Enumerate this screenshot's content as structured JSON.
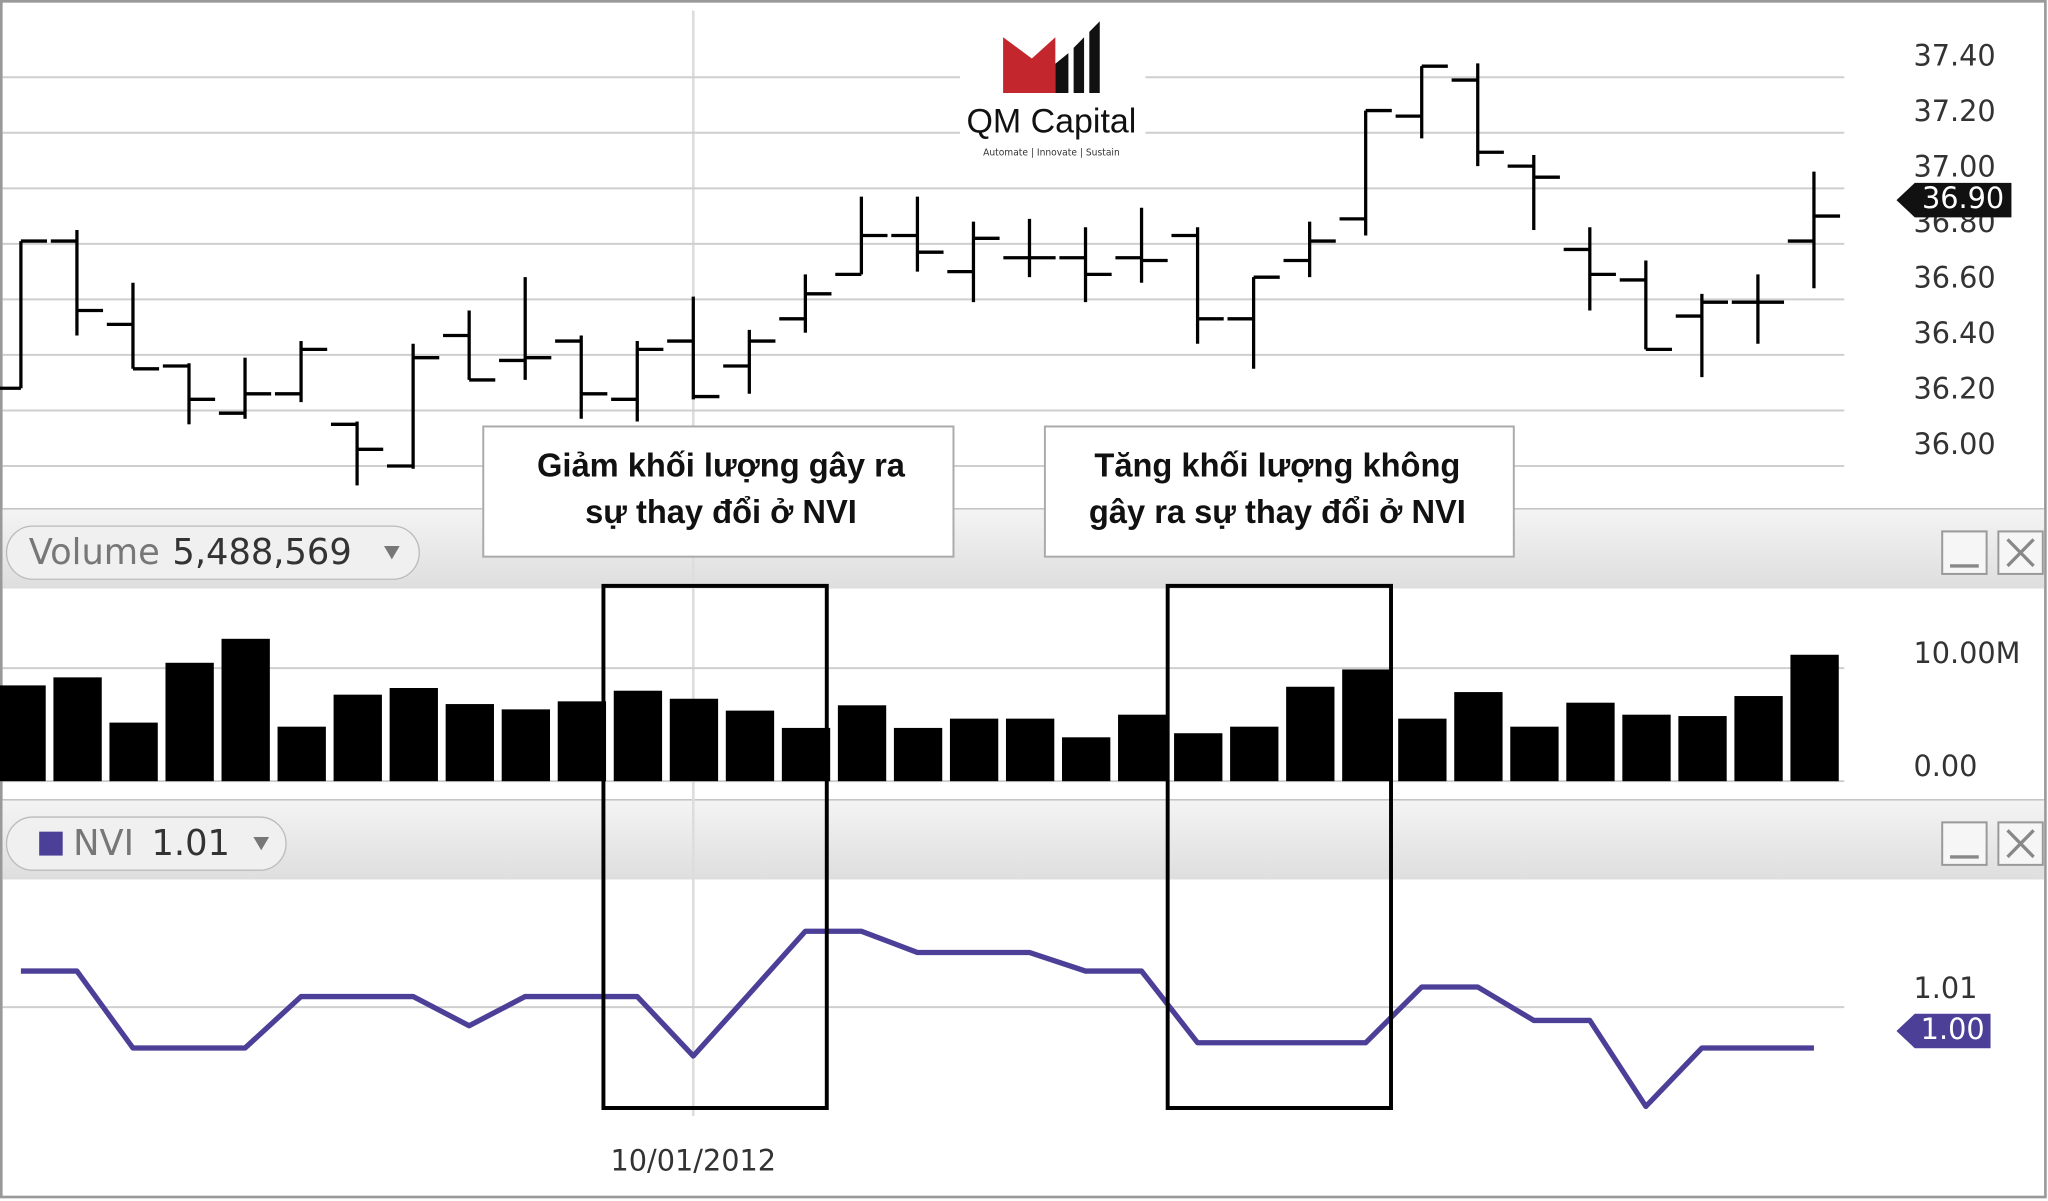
{
  "logo": {
    "name": "QM Capital",
    "tagline": "Automate | Innovate | Sustain"
  },
  "annotations": [
    {
      "lines": [
        "Giảm khối lượng gây ra",
        "sự thay đổi ở NVI"
      ]
    },
    {
      "lines": [
        "Tăng khối lượng không",
        "gây ra sự thay đổi ở NVI"
      ]
    }
  ],
  "chart_data": [
    {
      "type": "ohlc",
      "color": "#000000",
      "open": [
        36.28,
        36.81,
        36.51,
        36.36,
        36.19,
        36.26,
        36.15,
        36.0,
        36.47,
        36.38,
        36.45,
        36.24,
        36.45,
        36.36,
        36.53,
        36.69,
        36.83,
        36.7,
        36.75,
        36.75,
        36.75,
        36.83,
        36.53,
        36.74,
        36.89,
        37.26,
        37.39,
        37.08,
        36.78,
        36.67,
        36.54,
        36.59,
        36.81
      ],
      "high": [
        36.81,
        36.85,
        36.66,
        36.37,
        36.39,
        36.45,
        36.16,
        36.44,
        36.56,
        36.68,
        36.47,
        36.45,
        36.61,
        36.49,
        36.69,
        36.97,
        36.97,
        36.88,
        36.89,
        36.86,
        36.93,
        36.86,
        36.68,
        36.88,
        37.28,
        37.44,
        37.45,
        37.12,
        36.86,
        36.74,
        36.62,
        36.69,
        37.06
      ],
      "low": [
        36.28,
        36.47,
        36.35,
        36.15,
        36.17,
        36.23,
        35.93,
        35.99,
        36.31,
        36.31,
        36.17,
        36.16,
        36.24,
        36.26,
        36.48,
        36.69,
        36.7,
        36.59,
        36.68,
        36.59,
        36.66,
        36.44,
        36.35,
        36.68,
        36.83,
        37.18,
        37.08,
        36.85,
        36.56,
        36.42,
        36.32,
        36.44,
        36.64
      ],
      "close": [
        36.81,
        36.56,
        36.35,
        36.24,
        36.26,
        36.42,
        36.06,
        36.39,
        36.31,
        36.39,
        36.26,
        36.42,
        36.25,
        36.45,
        36.62,
        36.83,
        36.77,
        36.82,
        36.75,
        36.69,
        36.74,
        36.53,
        36.68,
        36.81,
        37.28,
        37.44,
        37.13,
        37.04,
        36.69,
        36.42,
        36.59,
        36.59,
        36.9
      ],
      "current_value": {
        "value": 36.9,
        "label": "36.90"
      },
      "ylim": [
        35.86,
        37.64
      ],
      "yticks": [
        {
          "value": 36.0,
          "label": "36.00"
        },
        {
          "value": 36.2,
          "label": "36.20"
        },
        {
          "value": 36.4,
          "label": "36.40"
        },
        {
          "value": 36.6,
          "label": "36.60"
        },
        {
          "value": 36.8,
          "label": "36.80"
        },
        {
          "value": 37.0,
          "label": "37.00"
        },
        {
          "value": 37.2,
          "label": "37.20"
        },
        {
          "value": 37.4,
          "label": "37.40"
        }
      ],
      "grid": true
    },
    {
      "type": "bar",
      "series": [
        {
          "name": "Volume",
          "color": "#000000",
          "values": [
            8470000,
            9180000,
            5180000,
            10470000,
            12590000,
            4820000,
            7650000,
            8240000,
            6820000,
            6350000,
            7060000,
            8000000,
            7290000,
            6240000,
            4710000,
            6710000,
            4710000,
            5530000,
            5530000,
            3880000,
            5880000,
            4240000,
            4820000,
            8350000,
            9880000,
            5530000,
            7880000,
            4820000,
            6940000,
            5880000,
            5760000,
            7530000,
            11180000
          ]
        }
      ],
      "legend_value": "5,488,569",
      "ylim": [
        0,
        16800000
      ],
      "yticks": [
        {
          "value": 0,
          "label": "0.00"
        },
        {
          "value": 10000000,
          "label": "10.00M"
        }
      ],
      "grid": true
    },
    {
      "type": "line",
      "series": [
        {
          "name": "NVI",
          "color": "#4c3f97",
          "values": [
            1.0168,
            1.0168,
            1.0023,
            1.0023,
            1.0023,
            1.012,
            1.012,
            1.012,
            1.0065,
            1.012,
            1.012,
            1.012,
            1.0008,
            1.0125,
            1.0243,
            1.0243,
            1.0203,
            1.0203,
            1.0203,
            1.0168,
            1.0168,
            1.0033,
            1.0033,
            1.0033,
            1.0033,
            1.0138,
            1.0138,
            1.0075,
            1.0075,
            0.9913,
            1.0023,
            1.0023,
            1.0023
          ]
        }
      ],
      "legend_value": "1.01",
      "current_value": {
        "value": 1.0,
        "label": "1.00"
      },
      "categories": [
        null,
        null,
        null,
        null,
        null,
        null,
        null,
        null,
        null,
        null,
        null,
        null,
        "10/01/2012",
        null,
        null,
        null,
        null,
        null,
        null,
        null,
        null,
        null,
        null,
        null,
        null,
        null,
        null,
        null,
        null,
        null,
        null,
        null,
        null
      ],
      "ylim": [
        0.9895,
        1.0333
      ],
      "yticks": [
        1.01
      ],
      "grid": true
    }
  ]
}
